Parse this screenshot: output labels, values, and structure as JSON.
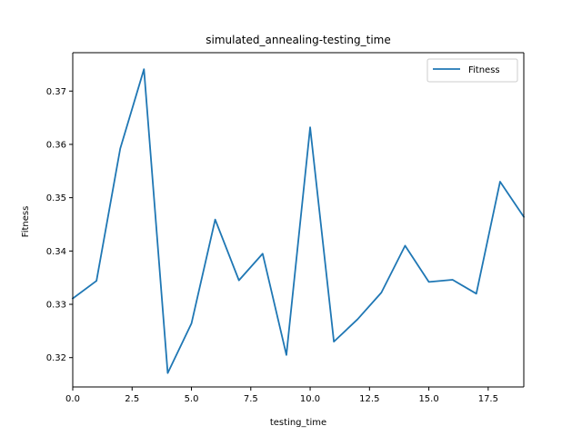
{
  "chart_data": {
    "type": "line",
    "title": "simulated_annealing-testing_time",
    "xlabel": "testing_time",
    "ylabel": "Fitness",
    "xlim": [
      0,
      19
    ],
    "ylim": [
      0.3145,
      0.3772
    ],
    "xticks": [
      0.0,
      2.5,
      5.0,
      7.5,
      10.0,
      12.5,
      15.0,
      17.5
    ],
    "xtick_labels": [
      "0.0",
      "2.5",
      "5.0",
      "7.5",
      "10.0",
      "12.5",
      "15.0",
      "17.5"
    ],
    "yticks": [
      0.32,
      0.33,
      0.34,
      0.35,
      0.36,
      0.37
    ],
    "ytick_labels": [
      "0.32",
      "0.33",
      "0.34",
      "0.35",
      "0.36",
      "0.37"
    ],
    "grid": false,
    "legend_position": "upper right",
    "series": [
      {
        "name": "Fitness",
        "color": "#1f77b4",
        "x": [
          0,
          1,
          2,
          3,
          4,
          5,
          6,
          7,
          8,
          9,
          10,
          11,
          12,
          13,
          14,
          15,
          16,
          17,
          18,
          19
        ],
        "y": [
          0.3311,
          0.3344,
          0.3592,
          0.3741,
          0.3171,
          0.3264,
          0.3459,
          0.3345,
          0.3395,
          0.3205,
          0.3632,
          0.323,
          0.3272,
          0.3322,
          0.341,
          0.3342,
          0.3346,
          0.332,
          0.353,
          0.3464
        ]
      }
    ]
  }
}
